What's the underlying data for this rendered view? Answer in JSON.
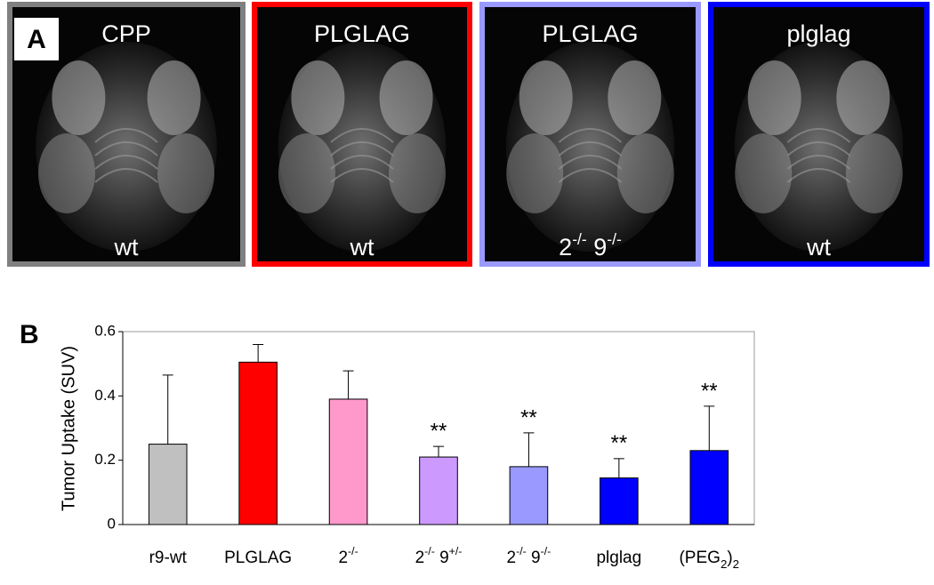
{
  "panel_a": {
    "label": "A",
    "images": [
      {
        "title": "CPP",
        "genotype": "wt",
        "color": "#808080"
      },
      {
        "title": "PLGLAG",
        "genotype": "wt",
        "color": "#ff0000"
      },
      {
        "title": "PLGLAG",
        "genotype": "2-/- 9-/-",
        "color": "#9999ff"
      },
      {
        "title": "plglag",
        "genotype": "wt",
        "color": "#0000ff"
      }
    ]
  },
  "chart_data": {
    "type": "bar",
    "panel_label": "B",
    "y_label": "Tumor Uptake (SUV)",
    "categories": [
      "r9-wt",
      "PLGLAG",
      "2-/-",
      "2-/- 9+/-",
      "2-/- 9-/-",
      "plglag",
      "(PEG2)2"
    ],
    "values": [
      0.25,
      0.505,
      0.39,
      0.21,
      0.18,
      0.145,
      0.23
    ],
    "errors": [
      0.215,
      0.055,
      0.088,
      0.033,
      0.105,
      0.06,
      0.138
    ],
    "colors": [
      "#c0c0c0",
      "#ff0000",
      "#ff99cc",
      "#cc99ff",
      "#9999ff",
      "#0000ff",
      "#0000ff"
    ],
    "annotations": [
      null,
      null,
      null,
      "**",
      "**",
      "**",
      "**"
    ],
    "ylim": [
      0,
      0.6
    ],
    "yticks": [
      0,
      0.2,
      0.4,
      0.6
    ]
  }
}
